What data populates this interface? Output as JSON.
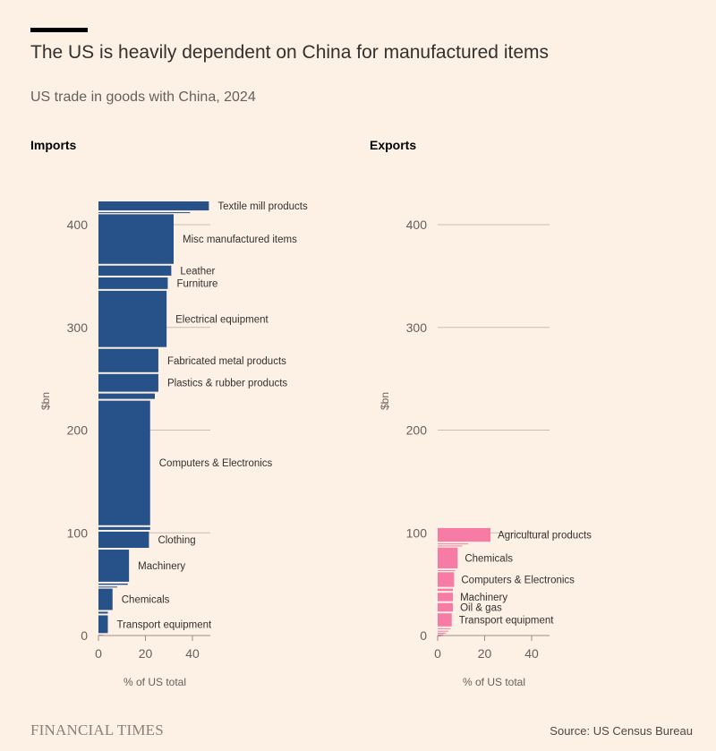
{
  "header": {
    "title": "The US is heavily dependent on China for manufactured items",
    "subtitle": "US trade in goods with China, 2024"
  },
  "footer": {
    "brand": "FINANCIAL TIMES",
    "source": "Source: US Census Bureau"
  },
  "colors": {
    "imports": "#265189",
    "exports": "#f77ca5",
    "background": "#fdf1e5",
    "gridline": "#c9bdb3"
  },
  "chart_data": [
    {
      "type": "bar",
      "subtype": "stacked-variable-width (marimekko)",
      "panel": "Imports",
      "ylabel": "$bn",
      "xlabel": "% of US total",
      "ylim": [
        0,
        460
      ],
      "xlim": [
        0,
        48
      ],
      "yticks": [
        0,
        100,
        200,
        300,
        400
      ],
      "xticks": [
        0,
        20,
        40
      ],
      "grid": "horizontal at y ticks",
      "segments": [
        {
          "label": "",
          "value_bn": 1.5,
          "share_pct": 2
        },
        {
          "label": "Transport equipment",
          "value_bn": 19,
          "share_pct": 4
        },
        {
          "label": "",
          "value_bn": 3.5,
          "share_pct": 4
        },
        {
          "label": "Chemicals",
          "value_bn": 22.5,
          "share_pct": 6
        },
        {
          "label": "",
          "value_bn": 2,
          "share_pct": 8
        },
        {
          "label": "",
          "value_bn": 3,
          "share_pct": 12.5
        },
        {
          "label": "Machinery",
          "value_bn": 33,
          "share_pct": 13
        },
        {
          "label": "Clothing",
          "value_bn": 17.5,
          "share_pct": 21.5
        },
        {
          "label": "",
          "value_bn": 4.5,
          "share_pct": 22
        },
        {
          "label": "Computers & Electronics",
          "value_bn": 123,
          "share_pct": 22
        },
        {
          "label": "",
          "value_bn": 7,
          "share_pct": 24
        },
        {
          "label": "Plastics & rubber products",
          "value_bn": 19,
          "share_pct": 25.5
        },
        {
          "label": "Fabricated metal products",
          "value_bn": 24.5,
          "share_pct": 25.5
        },
        {
          "label": "Electrical equipment",
          "value_bn": 56.5,
          "share_pct": 29
        },
        {
          "label": "Furniture",
          "value_bn": 13,
          "share_pct": 29.5
        },
        {
          "label": "Leather",
          "value_bn": 11.5,
          "share_pct": 31
        },
        {
          "label": "Misc manufactured items",
          "value_bn": 50,
          "share_pct": 32
        },
        {
          "label": "",
          "value_bn": 2,
          "share_pct": 39
        },
        {
          "label": "Textile mill products",
          "value_bn": 10.5,
          "share_pct": 47
        }
      ]
    },
    {
      "type": "bar",
      "subtype": "stacked-variable-width (marimekko)",
      "panel": "Exports",
      "ylabel": "$bn",
      "xlabel": "% of US total",
      "ylim": [
        0,
        460
      ],
      "xlim": [
        0,
        48
      ],
      "yticks": [
        0,
        100,
        200,
        300,
        400
      ],
      "xticks": [
        0,
        20,
        40
      ],
      "grid": "horizontal at y ticks",
      "segments": [
        {
          "label": "",
          "value_bn": 0.8,
          "share_pct": 1.5
        },
        {
          "label": "",
          "value_bn": 1.2,
          "share_pct": 2.5
        },
        {
          "label": "",
          "value_bn": 1.5,
          "share_pct": 3.5
        },
        {
          "label": "",
          "value_bn": 2,
          "share_pct": 4.5
        },
        {
          "label": "",
          "value_bn": 2.5,
          "share_pct": 5.5
        },
        {
          "label": "Transport equipment",
          "value_bn": 14.5,
          "share_pct": 6
        },
        {
          "label": "Oil & gas",
          "value_bn": 10,
          "share_pct": 6.5
        },
        {
          "label": "Machinery",
          "value_bn": 10,
          "share_pct": 6.5
        },
        {
          "label": "",
          "value_bn": 4,
          "share_pct": 6.5
        },
        {
          "label": "Computers & Electronics",
          "value_bn": 16,
          "share_pct": 7
        },
        {
          "label": "",
          "value_bn": 2,
          "share_pct": 7.5
        },
        {
          "label": "Chemicals",
          "value_bn": 22,
          "share_pct": 8.5
        },
        {
          "label": "",
          "value_bn": 2,
          "share_pct": 10.5
        },
        {
          "label": "",
          "value_bn": 2,
          "share_pct": 13
        },
        {
          "label": "Agricultural products",
          "value_bn": 15,
          "share_pct": 22.5
        }
      ]
    }
  ]
}
